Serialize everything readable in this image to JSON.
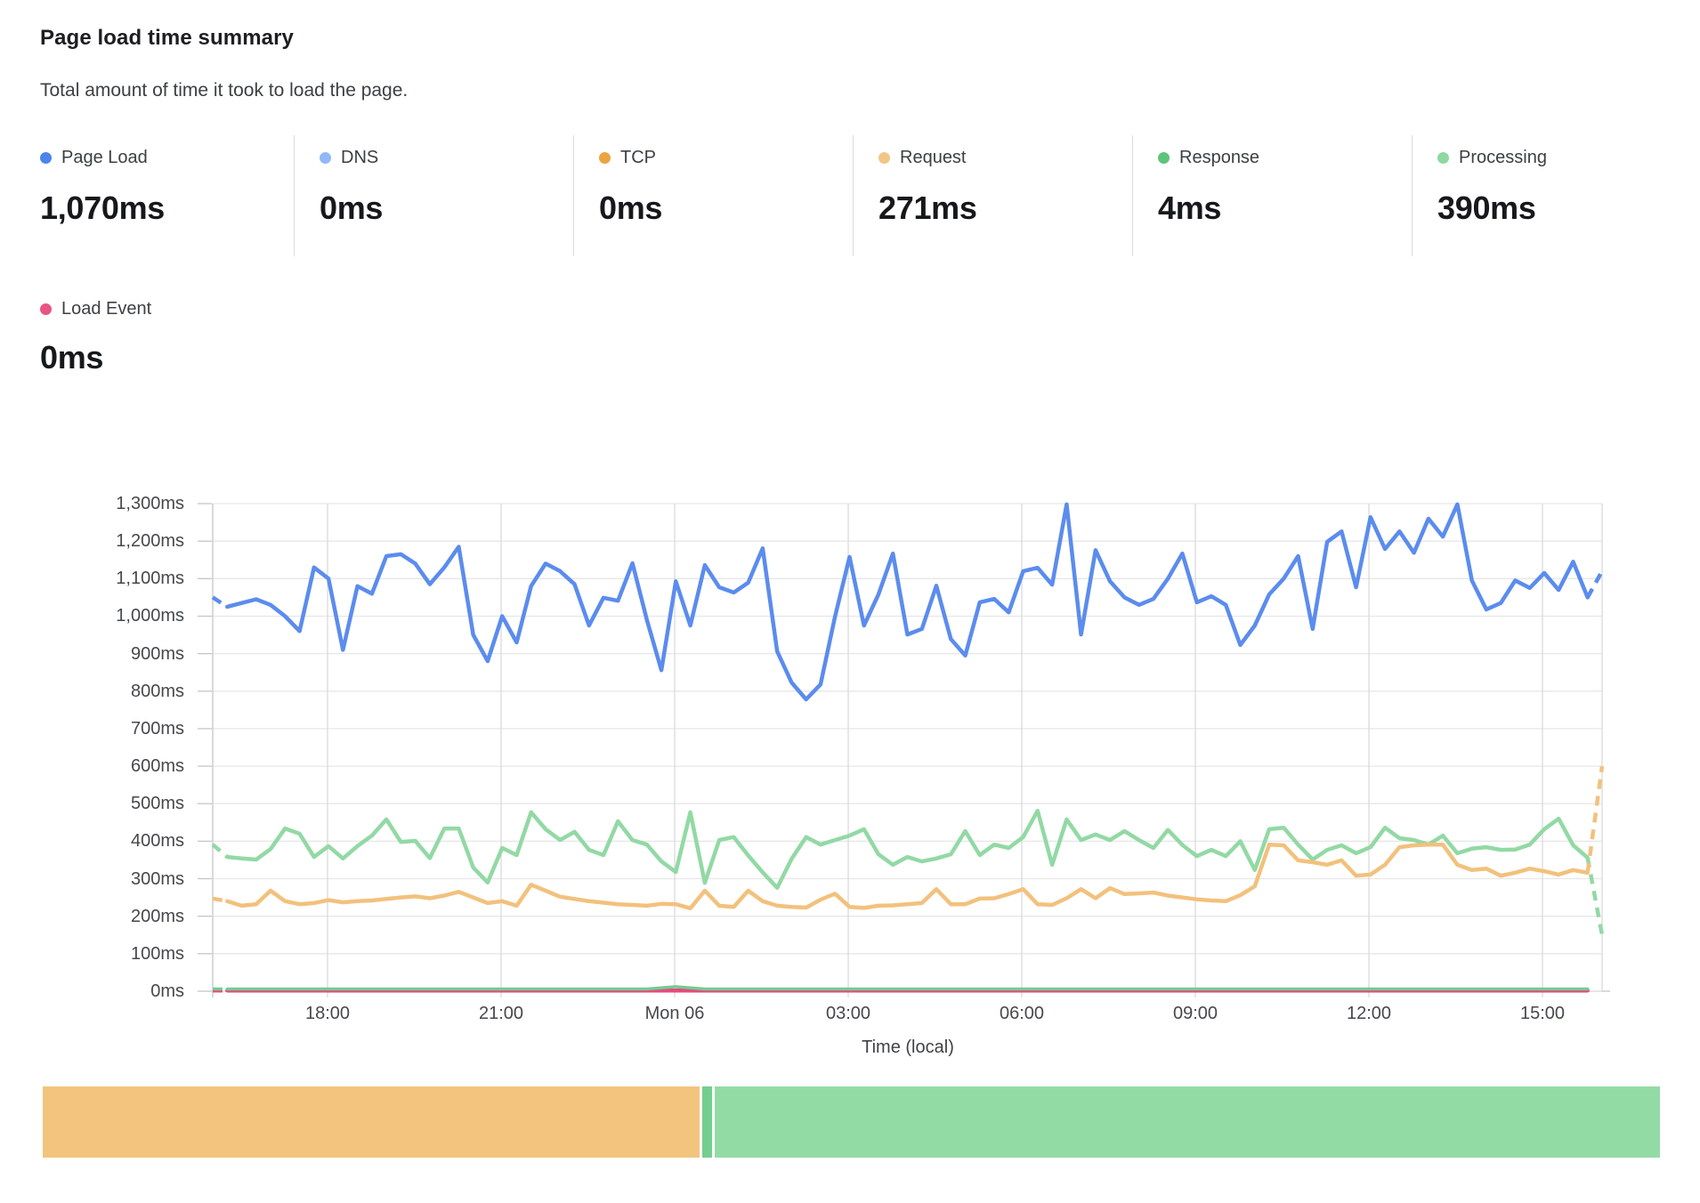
{
  "header": {
    "title": "Page load time summary",
    "subtitle": "Total amount of time it took to load the page."
  },
  "metrics": [
    {
      "label": "Page Load",
      "value": "1,070ms",
      "color": "#4b84ec"
    },
    {
      "label": "DNS",
      "value": "0ms",
      "color": "#93b7f7"
    },
    {
      "label": "TCP",
      "value": "0ms",
      "color": "#eba43e"
    },
    {
      "label": "Request",
      "value": "271ms",
      "color": "#f3c585"
    },
    {
      "label": "Response",
      "value": "4ms",
      "color": "#5ec47d"
    },
    {
      "label": "Processing",
      "value": "390ms",
      "color": "#8fd8a0"
    }
  ],
  "load_event_metric": {
    "label": "Load Event",
    "value": "0ms",
    "color": "#e95482"
  },
  "chart_data": {
    "type": "line",
    "xlabel": "Time (local)",
    "x_tick_labels": [
      "18:00",
      "21:00",
      "Mon 06",
      "03:00",
      "06:00",
      "09:00",
      "12:00",
      "15:00"
    ],
    "y_tick_labels": [
      "0ms",
      "100ms",
      "200ms",
      "300ms",
      "400ms",
      "500ms",
      "600ms",
      "700ms",
      "800ms",
      "900ms",
      "1,000ms",
      "1,100ms",
      "1,200ms",
      "1,300ms"
    ],
    "ylim": [
      0,
      1300
    ],
    "y_tick_step_ms": 100,
    "x_interval_minutes": 15,
    "grid": true,
    "legend_position": "top",
    "series": [
      {
        "name": "Load Event",
        "color": "#e64a7e",
        "width": 4.5,
        "dashed_start": true,
        "dashed_end": false,
        "values": [
          2,
          2,
          2,
          2,
          2,
          2,
          2,
          2,
          2,
          2,
          2,
          2,
          2,
          2,
          2,
          2,
          2,
          2,
          2,
          2,
          2,
          2,
          2,
          2,
          2,
          2,
          2,
          2,
          2,
          2,
          2,
          2,
          2,
          2,
          2,
          2,
          2,
          2,
          2,
          2,
          2,
          2,
          2,
          2,
          2,
          2,
          2,
          2,
          2,
          2,
          2,
          2,
          2,
          2,
          2,
          2,
          2,
          2,
          2,
          2,
          2,
          2,
          2,
          2,
          2,
          2,
          2,
          2,
          2,
          2,
          2,
          2,
          2,
          2,
          2,
          2,
          2,
          2,
          2,
          2,
          2,
          2,
          2,
          2,
          2,
          2,
          2,
          2,
          2,
          2,
          2,
          2,
          2,
          2,
          2,
          2
        ]
      },
      {
        "name": "Response",
        "color": "#74cb90",
        "width": 3.5,
        "dashed_start": true,
        "dashed_end": false,
        "values": [
          6,
          6,
          6,
          6,
          6,
          6,
          6,
          6,
          6,
          6,
          6,
          6,
          6,
          6,
          6,
          6,
          6,
          6,
          6,
          6,
          6,
          6,
          6,
          6,
          6,
          6,
          6,
          6,
          6,
          6,
          6,
          9,
          12,
          9,
          6,
          6,
          6,
          6,
          6,
          6,
          6,
          6,
          6,
          6,
          6,
          6,
          6,
          6,
          6,
          6,
          6,
          6,
          6,
          6,
          6,
          6,
          6,
          6,
          6,
          6,
          6,
          6,
          6,
          6,
          6,
          6,
          6,
          6,
          6,
          6,
          6,
          6,
          6,
          6,
          6,
          6,
          6,
          6,
          6,
          6,
          6,
          6,
          6,
          6,
          6,
          6,
          6,
          6,
          6,
          6,
          6,
          6,
          6,
          6,
          6,
          6
        ]
      },
      {
        "name": "Processing",
        "color": "#92d9a4",
        "width": 4.5,
        "dashed_start": true,
        "dashed_end": true,
        "values": [
          391,
          358,
          354,
          351,
          379,
          434,
          420,
          358,
          387,
          354,
          387,
          415,
          458,
          398,
          401,
          355,
          434,
          434,
          330,
          290,
          382,
          363,
          477,
          432,
          403,
          425,
          377,
          363,
          453,
          403,
          391,
          346,
          318,
          477,
          289,
          403,
          411,
          362,
          317,
          276,
          353,
          411,
          391,
          403,
          415,
          432,
          365,
          337,
          358,
          346,
          354,
          365,
          427,
          363,
          391,
          382,
          411,
          481,
          337,
          458,
          403,
          418,
          403,
          427,
          403,
          382,
          430,
          390,
          360,
          377,
          360,
          400,
          323,
          432,
          436,
          391,
          351,
          377,
          389,
          368,
          384,
          436,
          408,
          403,
          391,
          415,
          368,
          380,
          384,
          377,
          378,
          391,
          432,
          460,
          389,
          356,
          150
        ]
      },
      {
        "name": "Request",
        "color": "#f2c17d",
        "width": 4.5,
        "dashed_start": true,
        "dashed_end": true,
        "values": [
          247,
          240,
          228,
          232,
          268,
          240,
          232,
          235,
          243,
          237,
          240,
          242,
          246,
          250,
          253,
          248,
          255,
          265,
          250,
          235,
          240,
          228,
          284,
          268,
          252,
          246,
          240,
          236,
          232,
          230,
          228,
          233,
          232,
          221,
          268,
          228,
          225,
          268,
          240,
          228,
          225,
          223,
          244,
          260,
          225,
          222,
          228,
          229,
          232,
          235,
          272,
          232,
          232,
          247,
          248,
          259,
          272,
          232,
          230,
          248,
          272,
          248,
          275,
          259,
          261,
          263,
          255,
          250,
          245,
          242,
          240,
          256,
          280,
          391,
          389,
          349,
          344,
          337,
          349,
          308,
          311,
          337,
          384,
          389,
          391,
          391,
          337,
          323,
          327,
          308,
          316,
          327,
          320,
          311,
          323,
          316,
          600
        ]
      },
      {
        "name": "Page Load",
        "color": "#5b8cee",
        "width": 4.5,
        "dashed_start": true,
        "dashed_end": true,
        "values": [
          1050,
          1025,
          1035,
          1045,
          1030,
          1000,
          960,
          1130,
          1100,
          910,
          1080,
          1060,
          1160,
          1165,
          1140,
          1085,
          1130,
          1185,
          950,
          880,
          1000,
          930,
          1080,
          1140,
          1120,
          1085,
          975,
          1049,
          1041,
          1141,
          990,
          856,
          1093,
          975,
          1136,
          1077,
          1063,
          1089,
          1181,
          906,
          823,
          778,
          818,
          999,
          1158,
          975,
          1058,
          1167,
          951,
          966,
          1081,
          939,
          895,
          1037,
          1046,
          1010,
          1120,
          1129,
          1084,
          1298,
          951,
          1176,
          1093,
          1050,
          1030,
          1046,
          1100,
          1167,
          1037,
          1053,
          1030,
          923,
          975,
          1058,
          1100,
          1160,
          966,
          1198,
          1226,
          1077,
          1264,
          1179,
          1226,
          1169,
          1260,
          1212,
          1298,
          1095,
          1018,
          1035,
          1095,
          1075,
          1115,
          1070,
          1145,
          1050,
          1120
        ]
      }
    ]
  },
  "breakdown_bar": {
    "segments": [
      {
        "name": "Request",
        "value_ms": 271,
        "color": "#f2c47e"
      },
      {
        "name": "Response",
        "value_ms": 4,
        "color": "#74ce8e"
      },
      {
        "name": "Processing",
        "value_ms": 390,
        "color": "#93dba5"
      }
    ]
  }
}
